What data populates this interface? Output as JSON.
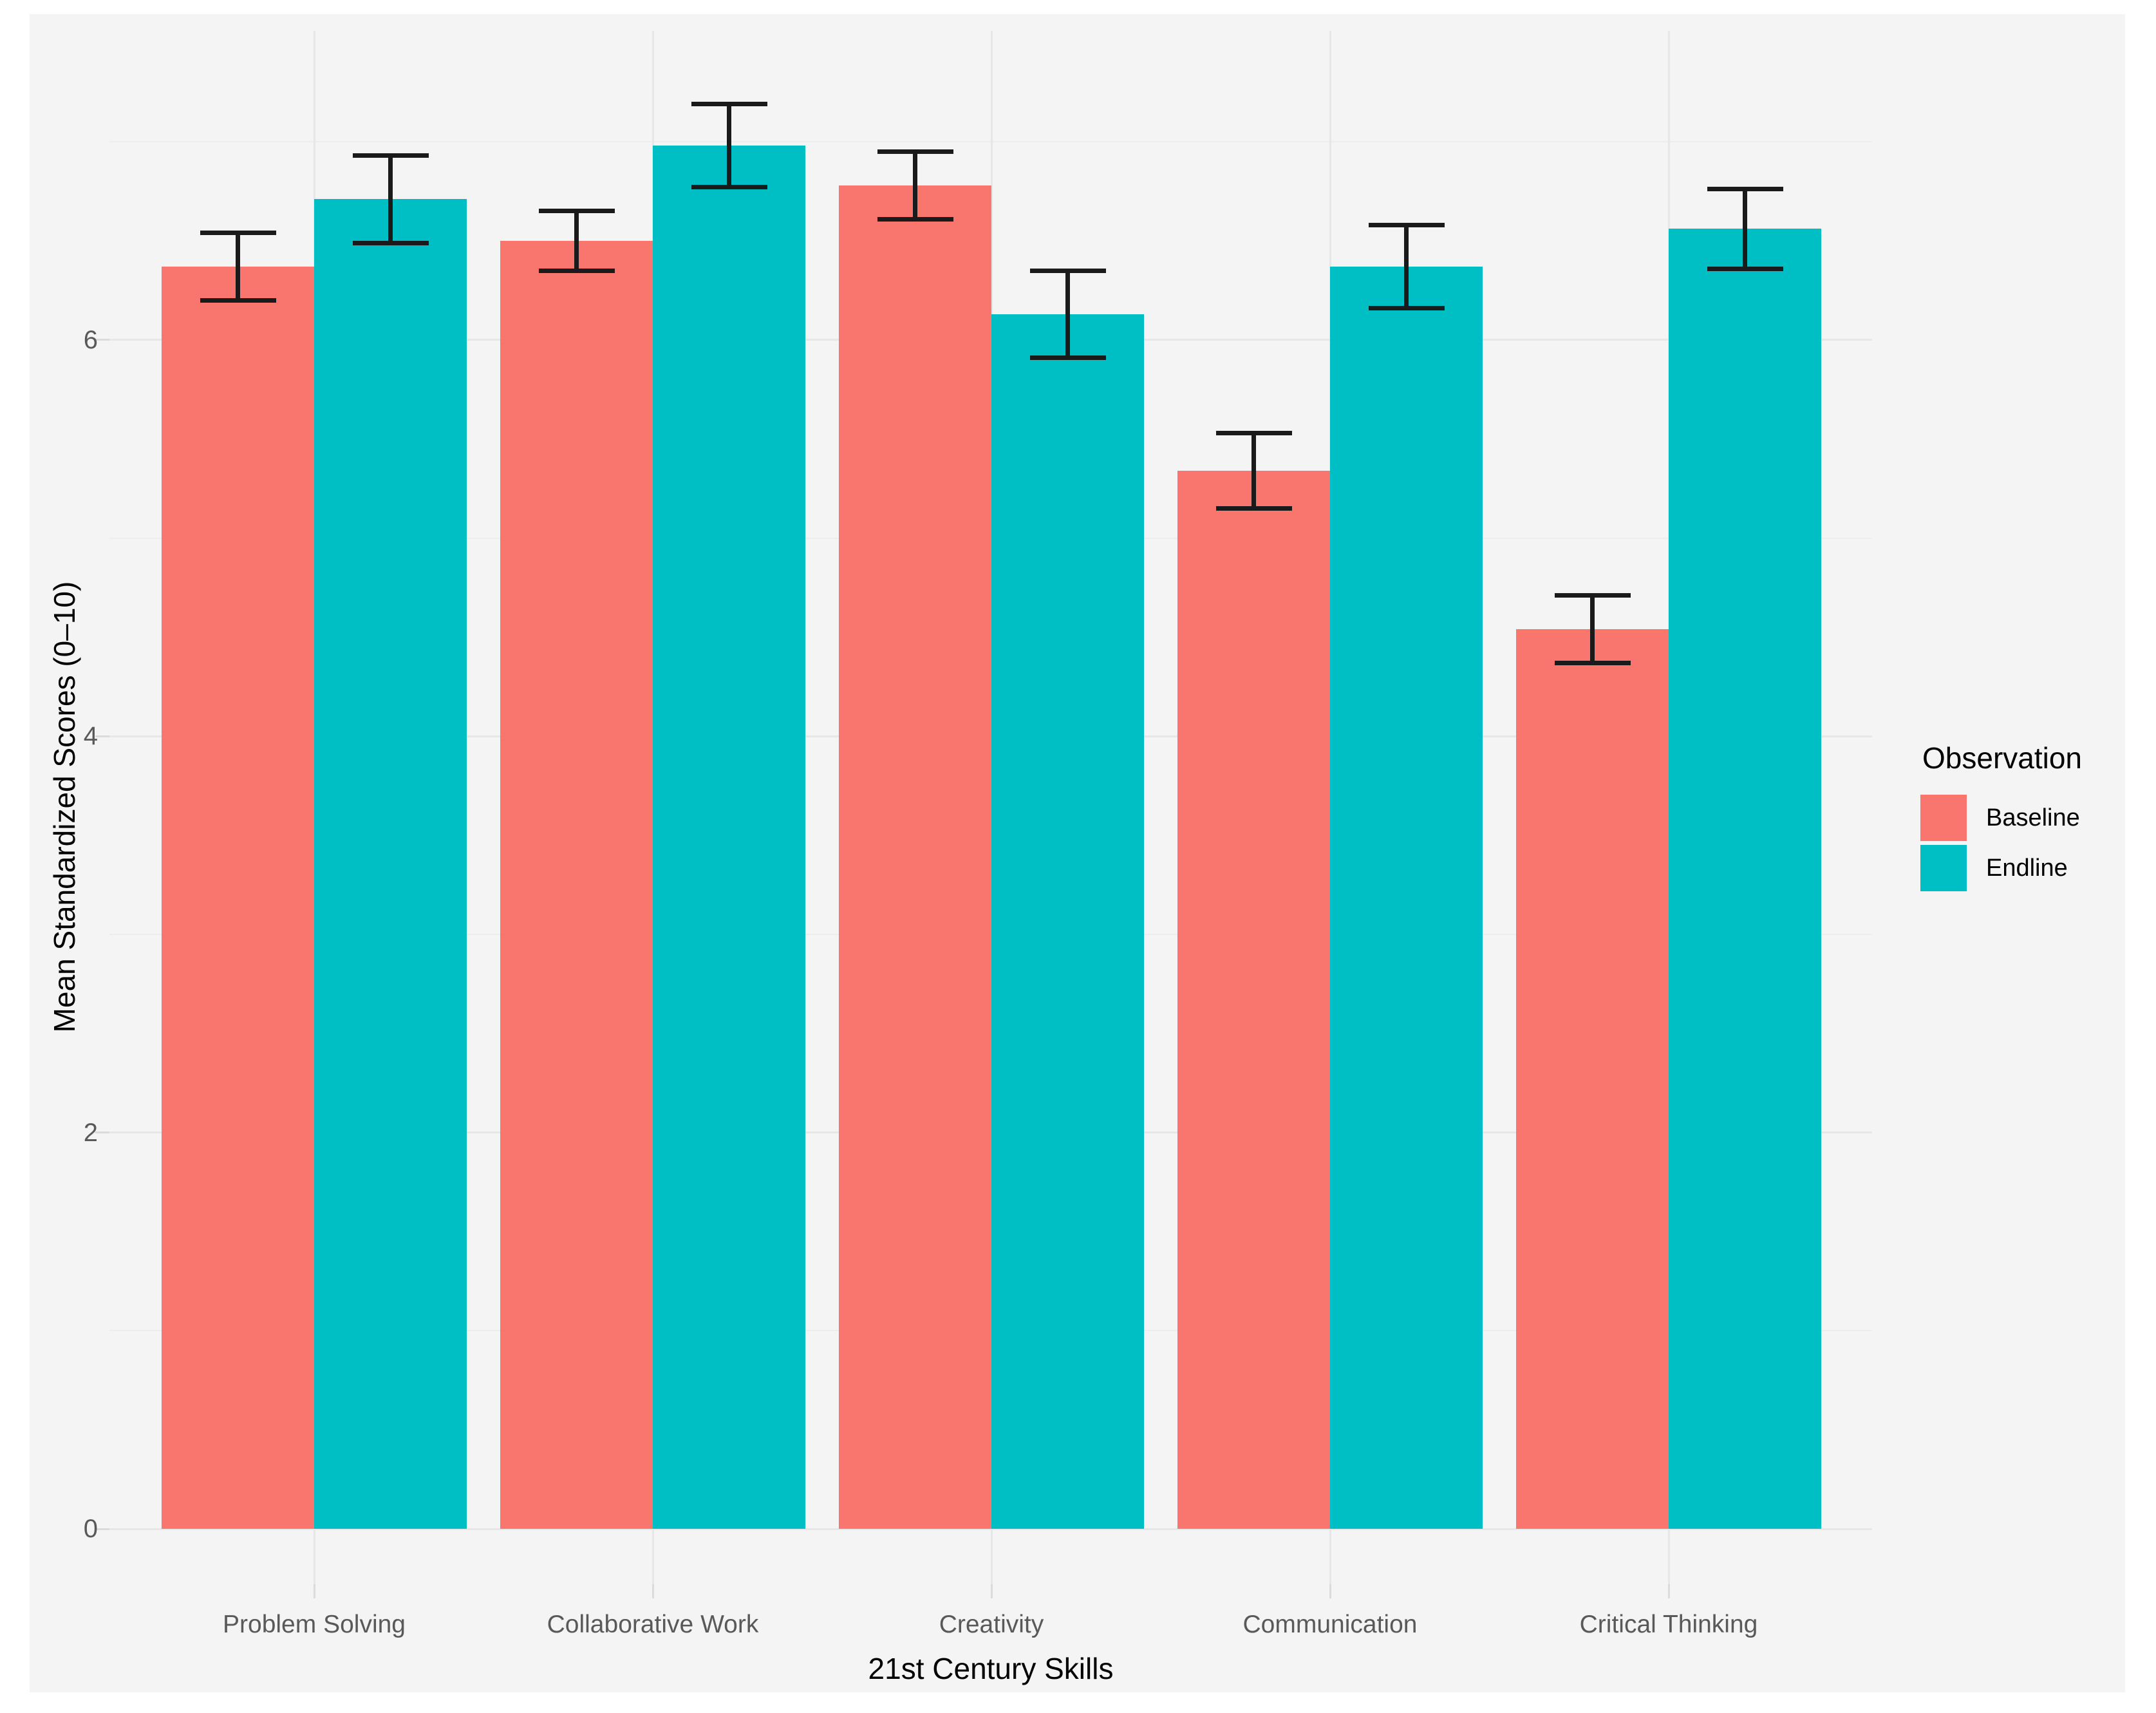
{
  "figure": {
    "page_background": "#FFFFFF",
    "plot_background": "#F4F4F4",
    "gridline_major_color": "#E7E7E7",
    "gridline_minor_color": "#EDEDED",
    "errorbar_color": "#1A1A1A"
  },
  "axes": {
    "y_title": "Mean Standardized Scores (0–10)",
    "x_title": "21st Century Skills"
  },
  "legend": {
    "title": "Observation",
    "position": "right",
    "items": [
      {
        "label": "Baseline",
        "color": "#F8766D"
      },
      {
        "label": "Endline",
        "color": "#00BFC4"
      }
    ]
  },
  "chart_data": {
    "type": "bar",
    "title": "",
    "xlabel": "21st Century Skills",
    "ylabel": "Mean Standardized Scores (0–10)",
    "categories": [
      "Problem Solving",
      "Collaborative Work",
      "Creativity",
      "Communication",
      "Critical Thinking"
    ],
    "series": [
      {
        "name": "Baseline",
        "color": "#F8766D",
        "values": [
          6.37,
          6.5,
          6.78,
          5.34,
          4.54
        ],
        "errors": [
          0.17,
          0.15,
          0.17,
          0.19,
          0.17
        ]
      },
      {
        "name": "Endline",
        "color": "#00BFC4",
        "values": [
          6.71,
          6.98,
          6.13,
          6.37,
          6.56
        ],
        "errors": [
          0.22,
          0.21,
          0.22,
          0.21,
          0.2
        ]
      }
    ],
    "error_bar_style": "mean ± error, caps at both ends",
    "ylim": [
      -0.28,
      7.56
    ],
    "y_major_ticks": [
      0,
      2,
      4,
      6
    ],
    "y_minor_gridlines": [
      1,
      3,
      5,
      7
    ],
    "grid": "horizontal major+minor, vertical major at category centers",
    "legend_position": "right",
    "bar_layout": "dodged pairs, bars touch within group"
  }
}
